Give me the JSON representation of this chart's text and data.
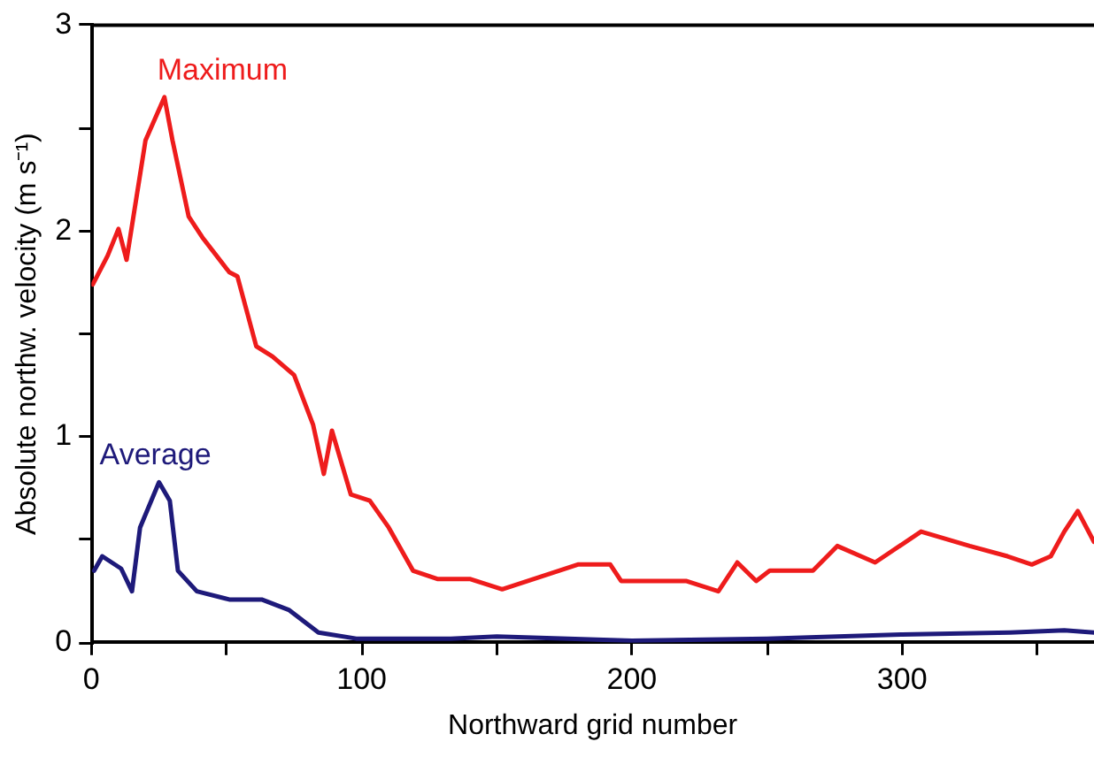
{
  "chart_data": {
    "type": "line",
    "xlabel": "Northward grid number",
    "ylabel": "Absolute northw. velocity (m s⁻¹)",
    "xlim": [
      0,
      371
    ],
    "xticks": [
      0,
      {
        "value": 50,
        "label": null
      },
      100,
      {
        "value": 150,
        "label": null
      },
      200,
      {
        "value": 250,
        "label": null
      },
      300,
      {
        "value": 350,
        "label": null
      }
    ],
    "ylim": [
      0,
      3
    ],
    "yticks": [
      0,
      {
        "value": 0.5,
        "label": null
      },
      1,
      {
        "value": 1.5,
        "label": null
      },
      2,
      {
        "value": 2.5,
        "label": null
      },
      3
    ],
    "grid": false,
    "legend": false,
    "marker": "none",
    "line_style": "solid",
    "series": [
      {
        "name": "Maximum",
        "color": "#ee1c1c",
        "x": [
          0.5,
          6,
          10,
          13,
          20,
          27,
          30,
          36,
          41,
          51,
          54,
          61,
          67,
          75,
          82,
          86,
          89,
          96,
          103,
          110,
          119,
          128,
          140,
          152,
          180,
          192,
          196,
          220,
          232,
          239,
          246,
          251,
          267,
          276,
          290,
          307,
          325,
          339,
          348,
          355,
          360,
          365,
          371
        ],
        "values": [
          1.74,
          1.88,
          2.01,
          1.86,
          2.44,
          2.65,
          2.44,
          2.07,
          1.97,
          1.8,
          1.78,
          1.44,
          1.39,
          1.3,
          1.06,
          0.82,
          1.03,
          0.72,
          0.69,
          0.56,
          0.35,
          0.31,
          0.31,
          0.26,
          0.38,
          0.38,
          0.3,
          0.3,
          0.25,
          0.39,
          0.3,
          0.35,
          0.35,
          0.47,
          0.39,
          0.54,
          0.47,
          0.42,
          0.38,
          0.42,
          0.54,
          0.64,
          0.49
        ]
      },
      {
        "name": "Average",
        "color": "#1e1a7a",
        "x": [
          1,
          4,
          11,
          15,
          18,
          25,
          29,
          32,
          39,
          51,
          63,
          73,
          84,
          98,
          133,
          150,
          200,
          250,
          300,
          340,
          360,
          371
        ],
        "values": [
          0.35,
          0.42,
          0.36,
          0.25,
          0.56,
          0.78,
          0.69,
          0.35,
          0.25,
          0.21,
          0.21,
          0.16,
          0.05,
          0.02,
          0.02,
          0.03,
          0.01,
          0.02,
          0.04,
          0.05,
          0.06,
          0.05
        ]
      }
    ]
  }
}
